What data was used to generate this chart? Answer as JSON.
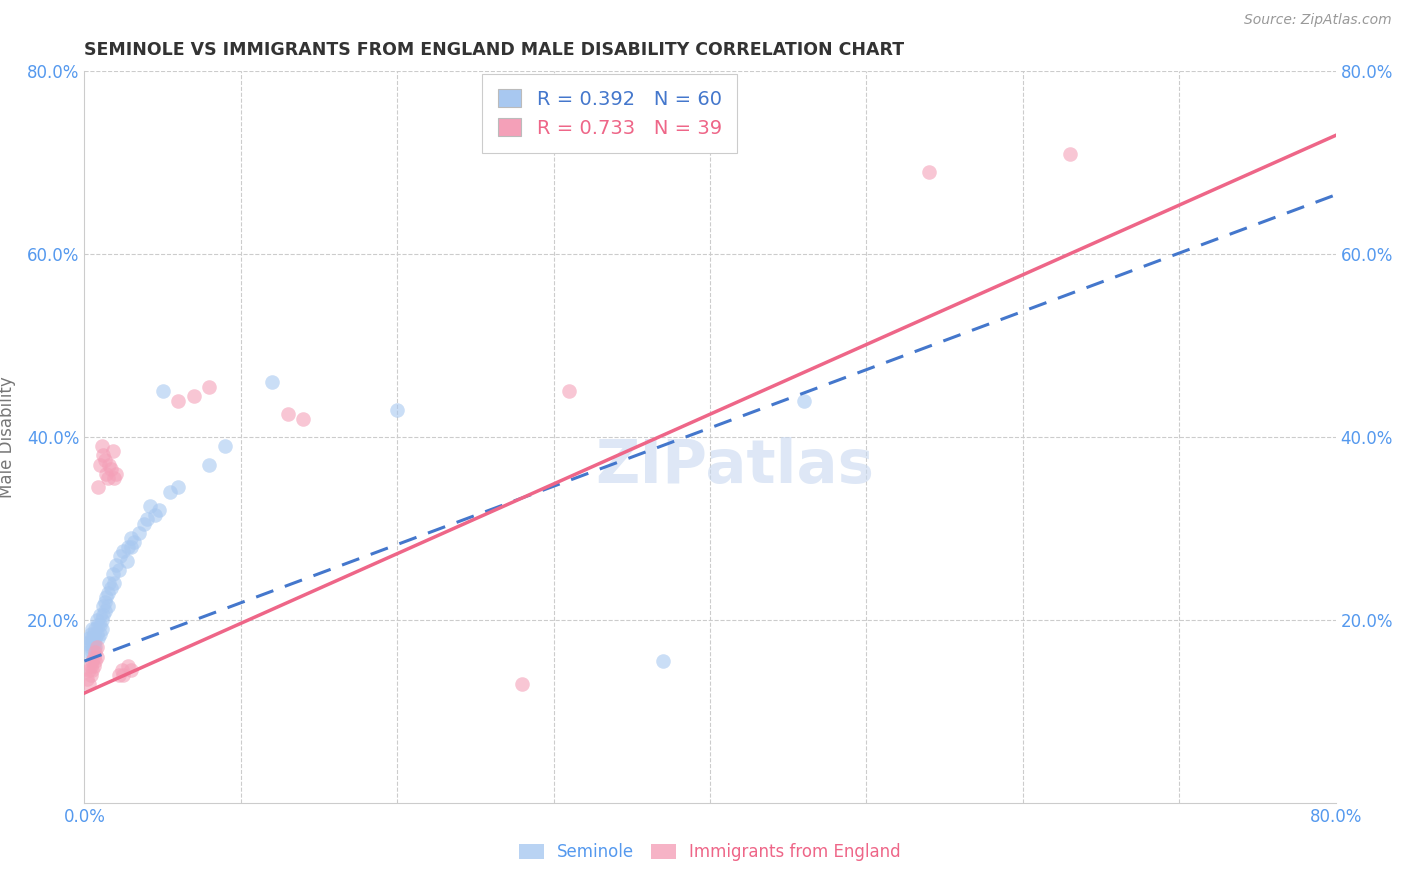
{
  "title": "SEMINOLE VS IMMIGRANTS FROM ENGLAND MALE DISABILITY CORRELATION CHART",
  "source": "Source: ZipAtlas.com",
  "ylabel": "Male Disability",
  "xlim": [
    0.0,
    0.8
  ],
  "ylim": [
    0.0,
    0.8
  ],
  "xtick_positions": [
    0.0,
    0.1,
    0.2,
    0.3,
    0.4,
    0.5,
    0.6,
    0.7,
    0.8
  ],
  "ytick_positions": [
    0.0,
    0.2,
    0.4,
    0.6,
    0.8
  ],
  "seminole_color": "#A8C8F0",
  "england_color": "#F4A0B8",
  "seminole_line_color": "#4477CC",
  "england_line_color": "#EE6688",
  "watermark": "ZIPatlas",
  "seminole_points": [
    [
      0.002,
      0.175
    ],
    [
      0.003,
      0.18
    ],
    [
      0.003,
      0.165
    ],
    [
      0.004,
      0.185
    ],
    [
      0.004,
      0.17
    ],
    [
      0.004,
      0.175
    ],
    [
      0.005,
      0.19
    ],
    [
      0.005,
      0.175
    ],
    [
      0.005,
      0.165
    ],
    [
      0.005,
      0.18
    ],
    [
      0.006,
      0.185
    ],
    [
      0.006,
      0.175
    ],
    [
      0.006,
      0.17
    ],
    [
      0.007,
      0.19
    ],
    [
      0.007,
      0.18
    ],
    [
      0.007,
      0.17
    ],
    [
      0.008,
      0.2
    ],
    [
      0.008,
      0.185
    ],
    [
      0.009,
      0.195
    ],
    [
      0.009,
      0.18
    ],
    [
      0.01,
      0.205
    ],
    [
      0.01,
      0.195
    ],
    [
      0.01,
      0.185
    ],
    [
      0.011,
      0.2
    ],
    [
      0.011,
      0.19
    ],
    [
      0.012,
      0.215
    ],
    [
      0.012,
      0.205
    ],
    [
      0.013,
      0.22
    ],
    [
      0.013,
      0.21
    ],
    [
      0.014,
      0.225
    ],
    [
      0.015,
      0.23
    ],
    [
      0.015,
      0.215
    ],
    [
      0.016,
      0.24
    ],
    [
      0.017,
      0.235
    ],
    [
      0.018,
      0.25
    ],
    [
      0.019,
      0.24
    ],
    [
      0.02,
      0.26
    ],
    [
      0.022,
      0.255
    ],
    [
      0.023,
      0.27
    ],
    [
      0.025,
      0.275
    ],
    [
      0.027,
      0.265
    ],
    [
      0.028,
      0.28
    ],
    [
      0.03,
      0.29
    ],
    [
      0.03,
      0.28
    ],
    [
      0.032,
      0.285
    ],
    [
      0.035,
      0.295
    ],
    [
      0.038,
      0.305
    ],
    [
      0.04,
      0.31
    ],
    [
      0.042,
      0.325
    ],
    [
      0.045,
      0.315
    ],
    [
      0.048,
      0.32
    ],
    [
      0.05,
      0.45
    ],
    [
      0.055,
      0.34
    ],
    [
      0.06,
      0.345
    ],
    [
      0.08,
      0.37
    ],
    [
      0.09,
      0.39
    ],
    [
      0.12,
      0.46
    ],
    [
      0.2,
      0.43
    ],
    [
      0.37,
      0.155
    ],
    [
      0.46,
      0.44
    ]
  ],
  "england_points": [
    [
      0.002,
      0.135
    ],
    [
      0.003,
      0.145
    ],
    [
      0.003,
      0.13
    ],
    [
      0.004,
      0.15
    ],
    [
      0.004,
      0.14
    ],
    [
      0.005,
      0.155
    ],
    [
      0.005,
      0.145
    ],
    [
      0.006,
      0.16
    ],
    [
      0.006,
      0.15
    ],
    [
      0.007,
      0.165
    ],
    [
      0.007,
      0.155
    ],
    [
      0.008,
      0.16
    ],
    [
      0.008,
      0.17
    ],
    [
      0.009,
      0.345
    ],
    [
      0.01,
      0.37
    ],
    [
      0.011,
      0.39
    ],
    [
      0.012,
      0.38
    ],
    [
      0.013,
      0.375
    ],
    [
      0.014,
      0.36
    ],
    [
      0.015,
      0.355
    ],
    [
      0.016,
      0.37
    ],
    [
      0.017,
      0.365
    ],
    [
      0.018,
      0.385
    ],
    [
      0.019,
      0.355
    ],
    [
      0.02,
      0.36
    ],
    [
      0.022,
      0.14
    ],
    [
      0.024,
      0.145
    ],
    [
      0.025,
      0.14
    ],
    [
      0.028,
      0.15
    ],
    [
      0.03,
      0.145
    ],
    [
      0.06,
      0.44
    ],
    [
      0.07,
      0.445
    ],
    [
      0.08,
      0.455
    ],
    [
      0.13,
      0.425
    ],
    [
      0.14,
      0.42
    ],
    [
      0.28,
      0.13
    ],
    [
      0.31,
      0.45
    ],
    [
      0.54,
      0.69
    ],
    [
      0.63,
      0.71
    ]
  ]
}
